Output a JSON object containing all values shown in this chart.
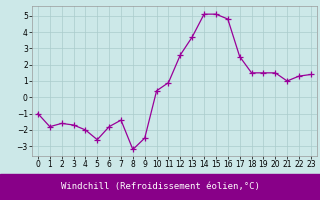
{
  "x": [
    0,
    1,
    2,
    3,
    4,
    5,
    6,
    7,
    8,
    9,
    10,
    11,
    12,
    13,
    14,
    15,
    16,
    17,
    18,
    19,
    20,
    21,
    22,
    23
  ],
  "y": [
    -1.0,
    -1.8,
    -1.6,
    -1.7,
    -2.0,
    -2.6,
    -1.8,
    -1.4,
    -3.2,
    -2.5,
    0.4,
    0.9,
    2.6,
    3.7,
    5.1,
    5.1,
    4.8,
    2.5,
    1.5,
    1.5,
    1.5,
    1.0,
    1.3,
    1.4
  ],
  "line_color": "#990099",
  "marker": "+",
  "marker_size": 4,
  "bg_color": "#cce8e8",
  "grid_color": "#aacccc",
  "xlabel": "Windchill (Refroidissement éolien,°C)",
  "xlabel_color": "#ffffff",
  "xlabel_bg": "#880088",
  "xlim": [
    -0.5,
    23.5
  ],
  "ylim": [
    -3.6,
    5.6
  ],
  "yticks": [
    -3,
    -2,
    -1,
    0,
    1,
    2,
    3,
    4,
    5
  ],
  "xticks": [
    0,
    1,
    2,
    3,
    4,
    5,
    6,
    7,
    8,
    9,
    10,
    11,
    12,
    13,
    14,
    15,
    16,
    17,
    18,
    19,
    20,
    21,
    22,
    23
  ],
  "tick_fontsize": 5.5,
  "xlabel_fontsize": 6.5
}
